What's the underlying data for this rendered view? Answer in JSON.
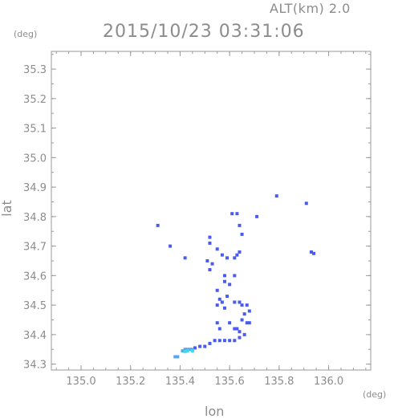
{
  "header": {
    "altitude_label": "ALT(km) 2.0",
    "timestamp": "2015/10/23 03:31:06"
  },
  "units": {
    "y_unit": "(deg)",
    "x_unit": "(deg)"
  },
  "chart_data": {
    "type": "scatter",
    "title": "2015/10/23 03:31:06",
    "xlabel": "lon",
    "ylabel": "lat",
    "xlim": [
      134.88,
      136.17
    ],
    "ylim": [
      34.28,
      35.36
    ],
    "xticks": [
      "135.0",
      "135.2",
      "135.4",
      "135.6",
      "135.8",
      "136.0"
    ],
    "yticks": [
      "34.3",
      "34.4",
      "34.5",
      "34.6",
      "34.7",
      "34.8",
      "34.9",
      "35.0",
      "35.1",
      "35.2",
      "35.3"
    ],
    "colors": {
      "main": "#4a5cf0",
      "light": "#58a6ee",
      "cyan": "#40d8e8"
    },
    "series": [
      {
        "points": [
          [
            135.31,
            34.77
          ],
          [
            135.36,
            34.7
          ],
          [
            135.42,
            34.66
          ],
          [
            135.52,
            34.73
          ],
          [
            135.52,
            34.71
          ],
          [
            135.55,
            34.69
          ],
          [
            135.51,
            34.65
          ],
          [
            135.53,
            34.64
          ],
          [
            135.57,
            34.67
          ],
          [
            135.59,
            34.66
          ],
          [
            135.62,
            34.66
          ],
          [
            135.63,
            34.67
          ],
          [
            135.64,
            34.68
          ],
          [
            135.62,
            34.6
          ],
          [
            135.58,
            34.6
          ],
          [
            135.52,
            34.62
          ],
          [
            135.58,
            34.58
          ],
          [
            135.6,
            34.57
          ],
          [
            135.55,
            34.55
          ],
          [
            135.56,
            34.52
          ],
          [
            135.57,
            34.51
          ],
          [
            135.55,
            34.5
          ],
          [
            135.58,
            34.49
          ],
          [
            135.59,
            34.53
          ],
          [
            135.62,
            34.51
          ],
          [
            135.64,
            34.51
          ],
          [
            135.65,
            34.5
          ],
          [
            135.67,
            34.5
          ],
          [
            135.68,
            34.48
          ],
          [
            135.66,
            34.47
          ],
          [
            135.65,
            34.45
          ],
          [
            135.67,
            34.44
          ],
          [
            135.68,
            34.44
          ],
          [
            135.6,
            34.44
          ],
          [
            135.62,
            34.42
          ],
          [
            135.63,
            34.42
          ],
          [
            135.64,
            34.41
          ],
          [
            135.55,
            34.44
          ],
          [
            135.56,
            34.42
          ],
          [
            135.54,
            34.38
          ],
          [
            135.56,
            34.38
          ],
          [
            135.58,
            34.38
          ],
          [
            135.6,
            34.38
          ],
          [
            135.62,
            34.38
          ],
          [
            135.64,
            34.39
          ],
          [
            135.66,
            34.4
          ],
          [
            135.52,
            34.37
          ],
          [
            135.5,
            34.36
          ],
          [
            135.48,
            34.36
          ],
          [
            135.46,
            34.355
          ],
          [
            135.61,
            34.81
          ],
          [
            135.63,
            34.81
          ],
          [
            135.64,
            34.77
          ],
          [
            135.65,
            34.74
          ],
          [
            135.71,
            34.8
          ],
          [
            135.79,
            34.87
          ],
          [
            135.91,
            34.845
          ],
          [
            135.93,
            34.68
          ],
          [
            135.94,
            34.675
          ]
        ]
      },
      {
        "points": [
          [
            135.42,
            34.35
          ],
          [
            135.43,
            34.35
          ],
          [
            135.44,
            34.35
          ],
          [
            135.45,
            34.35
          ],
          [
            135.41,
            34.345
          ],
          [
            135.38,
            34.325
          ],
          [
            135.39,
            34.325
          ]
        ]
      },
      {
        "points": [
          [
            135.43,
            34.345
          ],
          [
            135.45,
            34.345
          ],
          [
            135.42,
            34.343
          ]
        ]
      }
    ]
  }
}
